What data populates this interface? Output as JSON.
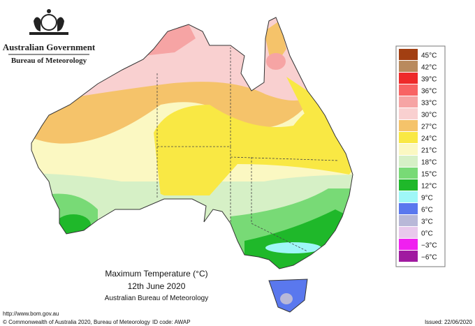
{
  "header": {
    "agency": "Australian Government",
    "bureau": "Bureau of Meteorology"
  },
  "legend": [
    {
      "label": "45°C",
      "color": "#a23f12"
    },
    {
      "label": "42°C",
      "color": "#b98a5e"
    },
    {
      "label": "39°C",
      "color": "#ee2a2a"
    },
    {
      "label": "36°C",
      "color": "#f86464"
    },
    {
      "label": "33°C",
      "color": "#f6a4a4"
    },
    {
      "label": "30°C",
      "color": "#f9d0d0"
    },
    {
      "label": "27°C",
      "color": "#f5c36a"
    },
    {
      "label": "24°C",
      "color": "#f9e844"
    },
    {
      "label": "21°C",
      "color": "#fbf8c2"
    },
    {
      "label": "18°C",
      "color": "#d6f0c6"
    },
    {
      "label": "15°C",
      "color": "#78da76"
    },
    {
      "label": "12°C",
      "color": "#1fb82a"
    },
    {
      "label": "9°C",
      "color": "#9ff7f7"
    },
    {
      "label": "6°C",
      "color": "#5a78ee"
    },
    {
      "label": "3°C",
      "color": "#b8b8d8"
    },
    {
      "label": "0°C",
      "color": "#e8c8ec"
    },
    {
      "label": "−3°C",
      "color": "#f020f0"
    },
    {
      "label": "−6°C",
      "color": "#a01aa0"
    }
  ],
  "caption": {
    "title": "Maximum Temperature (°C)",
    "date": "12th June 2020",
    "source": "Australian Bureau of Meteorology"
  },
  "footer": {
    "url": "http://www.bom.gov.au",
    "copyright": "© Commonwealth of Australia 2020, Bureau of Meteorology",
    "id_code": "ID code: AWAP",
    "issued": "Issued: 22/06/2020"
  }
}
